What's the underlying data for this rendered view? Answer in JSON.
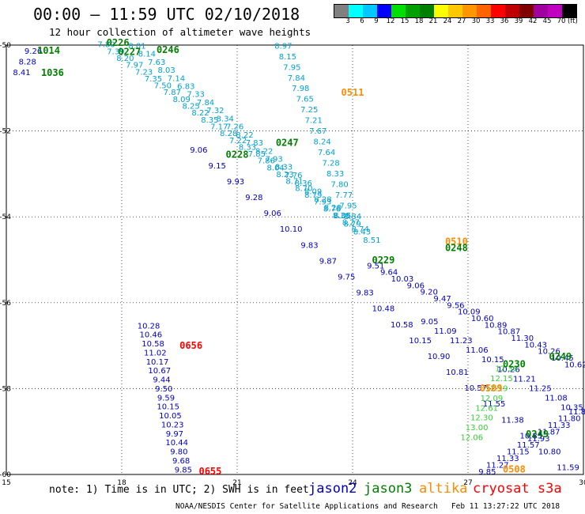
{
  "header": {
    "title": "00:00 – 11:59 UTC 02/10/2018",
    "subtitle": "12 hour collection of altimeter wave heights"
  },
  "colorbar": {
    "colors": [
      "#808080",
      "#00ffff",
      "#00c8ff",
      "#0000ff",
      "#00e000",
      "#00a000",
      "#008000",
      "#ffff00",
      "#ffc800",
      "#ff9600",
      "#ff6400",
      "#ff0000",
      "#c00000",
      "#800000",
      "#a000a0",
      "#c000c0",
      "#000000"
    ],
    "labels": [
      "3",
      "6",
      "9",
      "12",
      "15",
      "18",
      "21",
      "24",
      "27",
      "30",
      "33",
      "36",
      "39",
      "42",
      "45",
      "70"
    ],
    "unit": "(ft)"
  },
  "colors": {
    "jason2": "#0000c0",
    "jason3": "#008000",
    "altika": "#ff8c00",
    "cryosat": "#ff0000",
    "jason3_light": "#33cc33",
    "cyan": "#00a0d0"
  },
  "notes": {
    "note": "note: 1) Time is in UTC; 2) SWH is in feet",
    "footer": "NOAA/NESDIS Center for Satellite Applications and Research   Feb 11 13:27:22 UTC 2018"
  },
  "legend": [
    {
      "label": "jason2",
      "color": "#0000c0"
    },
    {
      "label": "jason3",
      "color": "#008000"
    },
    {
      "label": "altika",
      "color": "#ff8c00"
    },
    {
      "label": "cryosat s3a",
      "color": "#ff0000"
    }
  ],
  "chart_data": {
    "type": "scatter",
    "xlim": [
      15,
      30
    ],
    "ylim": [
      -60,
      -50
    ],
    "xticks": [
      "15",
      "18",
      "21",
      "24",
      "27",
      "30"
    ],
    "yticks": [
      "-50",
      "-52",
      "-54",
      "-56",
      "-58",
      "-60"
    ],
    "grid": true,
    "times": [
      {
        "label": "1014",
        "x": 16.1,
        "y": -50.2,
        "color": "#008000"
      },
      {
        "label": "1036",
        "x": 16.2,
        "y": -50.72,
        "color": "#008000"
      },
      {
        "label": "0226",
        "x": 17.9,
        "y": -50.02,
        "color": "#008000"
      },
      {
        "label": "0227",
        "x": 18.2,
        "y": -50.23,
        "color": "#008000"
      },
      {
        "label": "0246",
        "x": 19.2,
        "y": -50.18,
        "color": "#008000"
      },
      {
        "label": "0511",
        "x": 24.0,
        "y": -51.18,
        "color": "#ff8c00"
      },
      {
        "label": "0247",
        "x": 22.3,
        "y": -52.35,
        "color": "#008000"
      },
      {
        "label": "0228",
        "x": 21.0,
        "y": -52.62,
        "color": "#008000"
      },
      {
        "label": "0510",
        "x": 26.7,
        "y": -54.65,
        "color": "#ff8c00"
      },
      {
        "label": "0248",
        "x": 26.7,
        "y": -54.8,
        "color": "#008000"
      },
      {
        "label": "0229",
        "x": 24.8,
        "y": -55.08,
        "color": "#008000"
      },
      {
        "label": "0656",
        "x": 19.8,
        "y": -57.07,
        "color": "#ff0000"
      },
      {
        "label": "0249",
        "x": 29.4,
        "y": -57.33,
        "color": "#008000"
      },
      {
        "label": "0230",
        "x": 28.2,
        "y": -57.5,
        "color": "#008000"
      },
      {
        "label": "0509",
        "x": 27.6,
        "y": -58.07,
        "color": "#ff8c00"
      },
      {
        "label": "0249",
        "x": 28.8,
        "y": -59.13,
        "color": "#008000"
      },
      {
        "label": "0508",
        "x": 28.2,
        "y": -59.95,
        "color": "#ff8c00"
      },
      {
        "label": "0655",
        "x": 20.3,
        "y": -60.0,
        "color": "#ff0000"
      }
    ],
    "tracks": [
      {
        "name": "altika",
        "color": "#00a0d0",
        "x0": 22.2,
        "y0": -50.08,
        "x1": 24.0,
        "y1": -54.05,
        "values": [
          "8.97",
          "8.15",
          "7.95",
          "7.84",
          "7.98",
          "7.65",
          "7.25",
          "7.21",
          "7.67",
          "8.24",
          "7.64",
          "7.28",
          "8.33",
          "7.80",
          "7.77",
          "7.95",
          "8.84"
        ]
      },
      {
        "name": "altika",
        "color": "#00a0d0",
        "x0": 17.6,
        "y0": -50.05,
        "x1": 24.2,
        "y1": -54.35,
        "values": [
          "7.80",
          "7.39",
          "8.20",
          "7.97",
          "7.23",
          "7.35",
          "7.50",
          "7.87",
          "8.09",
          "8.25",
          "8.22",
          "8.35",
          "7.17",
          "8.28",
          "7.22",
          "8.33",
          "7.85",
          "7.86",
          "8.04",
          "8.23",
          "8.71",
          "8.70",
          "8.79",
          "7.93",
          "8.76",
          "8.38",
          "8.27",
          "8.74"
        ]
      },
      {
        "name": "altika",
        "color": "#00a0d0",
        "x0": 18.4,
        "y0": -50.08,
        "x1": 24.5,
        "y1": -54.6,
        "values": [
          "8.01",
          "8.14",
          "7.63",
          "8.03",
          "7.14",
          "6.83",
          "7.33",
          "7.84",
          "7.32",
          "8.34",
          "7.26",
          "8.22",
          "7.83",
          "8.22",
          "7.93",
          "8.33",
          "7.76",
          "8.36",
          "8.09",
          "8.28",
          "8.28",
          "8.05",
          "8.79",
          "8.43",
          "8.51"
        ]
      },
      {
        "name": "jason2",
        "color": "#0000c0",
        "x0": 15.7,
        "y0": -50.2,
        "x1": 15.4,
        "y1": -50.7,
        "values": [
          "9.26",
          "8.28",
          "8.41"
        ]
      },
      {
        "name": "jason2",
        "color": "#0000c0",
        "x0": 20.0,
        "y0": -52.5,
        "x1": 29.6,
        "y1": -59.9,
        "values": [
          "9.06",
          "9.15",
          "9.93",
          "9.28",
          "9.06",
          "10.10",
          "9.83",
          "9.87",
          "9.75",
          "9.83",
          "10.48",
          "10.58",
          "10.15",
          "10.90",
          "10.81",
          "10.57",
          "11.55",
          "11.38",
          "10.83",
          "10.80",
          "11.59"
        ]
      },
      {
        "name": "jason2",
        "color": "#0000c0",
        "x0": 18.7,
        "y0": -56.6,
        "x1": 19.6,
        "y1": -59.95,
        "values": [
          "10.28",
          "10.46",
          "10.58",
          "11.02",
          "10.17",
          "10.67",
          "9.44",
          "9.50",
          "9.59",
          "10.15",
          "10.05",
          "10.23",
          "9.97",
          "10.44",
          "9.80",
          "9.68",
          "9.85"
        ]
      },
      {
        "name": "jason2",
        "color": "#0000c0",
        "x0": 24.6,
        "y0": -55.2,
        "x1": 29.8,
        "y1": -57.5,
        "values": [
          "9.51",
          "9.64",
          "10.03",
          "9.06",
          "9.20",
          "9.47",
          "9.56",
          "10.09",
          "10.60",
          "10.89",
          "10.87",
          "11.30",
          "10.43",
          "10.26",
          "10.45",
          "10.62"
        ]
      },
      {
        "name": "jason2",
        "color": "#0000c0",
        "x0": 26.0,
        "y0": -56.5,
        "x1": 29.7,
        "y1": -58.5,
        "values": [
          "9.05",
          "11.09",
          "11.23",
          "11.06",
          "10.15",
          "10.26",
          "11.21",
          "11.25",
          "11.08",
          "10.35"
        ]
      },
      {
        "name": "jason2",
        "color": "#0000c0",
        "x0": 27.5,
        "y0": -60.0,
        "x1": 29.9,
        "y1": -58.6,
        "values": [
          "9.85",
          "11.27",
          "11.33",
          "11.15",
          "11.57",
          "11.93",
          "11.87",
          "11.33",
          "11.80",
          "11.84"
        ]
      },
      {
        "name": "jason3",
        "color": "#33cc33",
        "x0": 28.0,
        "y0": -57.6,
        "x1": 27.1,
        "y1": -59.2,
        "values": [
          "12.36",
          "12.15",
          "12.19",
          "12.09",
          "12.61",
          "12.30",
          "13.00",
          "12.06"
        ]
      }
    ]
  }
}
